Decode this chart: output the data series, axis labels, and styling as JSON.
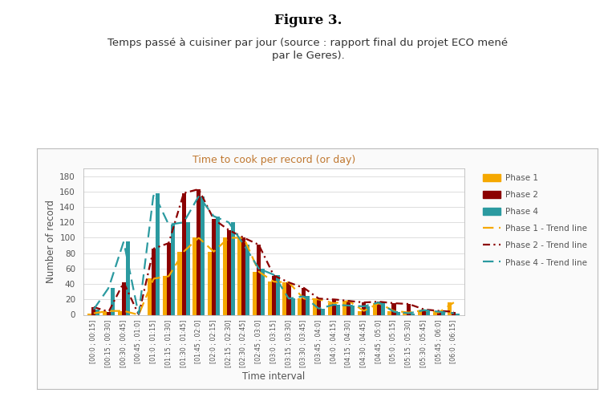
{
  "title_bold": "Figure 3.",
  "title_sub": "Temps passé à cuisiner par jour (source : rapport final du projet ECO mené\npar le Geres).",
  "chart_title": "Time to cook per record (or day)",
  "xlabel": "Time interval",
  "ylabel": "Number of record",
  "ylim": [
    0,
    190
  ],
  "yticks": [
    0,
    20,
    40,
    60,
    80,
    100,
    120,
    140,
    160,
    180
  ],
  "categories": [
    "[00:0 ; 00:15]",
    "[00:15 ; 00:30]",
    "[00:30 ; 00:45]",
    "[00:45 ; 01:0]",
    "[01:0 ; 01:15]",
    "[01:15 ; 01:30]",
    "[01:30 ; 01:45]",
    "[01:45 ; 02:0]",
    "[02:0 ; 02:15]",
    "[02:15 ; 02:30]",
    "[02:30 ; 02:45]",
    "[02:45 ; 03:0]",
    "[03:0 ; 03:15]",
    "[03:15 ; 03:30]",
    "[03:30 ; 03:45]",
    "[03:45 ; 04:0]",
    "[04:0 ; 04:15]",
    "[04:15 ; 04:30]",
    "[04:30 ; 04:45]",
    "[04:45 ; 05:0]",
    "[05:0 ; 05:15]",
    "[05:15 ; 05:30]",
    "[05:30 ; 05:45]",
    "[05:45 ; 06:0]",
    "[06:0 ; 06:15]"
  ],
  "phase1": [
    2,
    5,
    5,
    0,
    47,
    50,
    82,
    100,
    82,
    100,
    100,
    56,
    43,
    42,
    21,
    20,
    15,
    18,
    5,
    15,
    5,
    3,
    6,
    3,
    16
  ],
  "phase2": [
    10,
    4,
    42,
    0,
    86,
    93,
    158,
    163,
    124,
    110,
    100,
    91,
    51,
    42,
    35,
    21,
    20,
    18,
    16,
    17,
    15,
    14,
    7,
    5,
    4
  ],
  "phase4": [
    7,
    35,
    95,
    0,
    158,
    117,
    120,
    154,
    128,
    120,
    91,
    60,
    52,
    21,
    24,
    8,
    13,
    12,
    11,
    16,
    4,
    2,
    6,
    4,
    2
  ],
  "color_phase1": "#F5A800",
  "color_phase2": "#8B0000",
  "color_phase4": "#2B9AA0",
  "chart_bg": "#FFFFFF",
  "border_color": "#BBBBBB",
  "grid_color": "#DDDDDD",
  "chart_title_color": "#C07830",
  "text_color": "#555555",
  "box_facecolor": "#FAFAFA"
}
